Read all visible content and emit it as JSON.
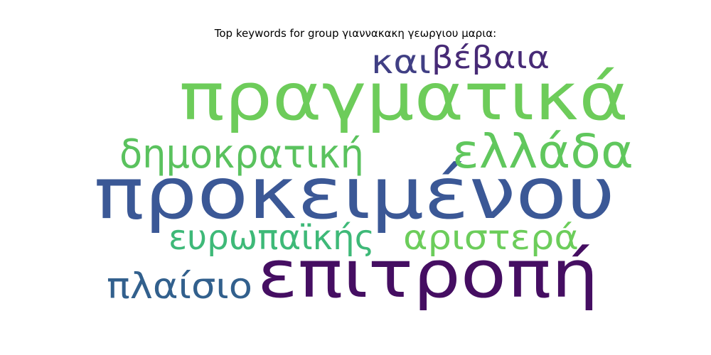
{
  "title": "Top keywords for group γιαννακακη γεωργιου μαρια:",
  "words": [
    {
      "text": "προκειμένου",
      "color": "#3b5896"
    },
    {
      "text": "πραγματικά",
      "color": "#6dcc5a"
    },
    {
      "text": "επιτροπή",
      "color": "#450e62"
    },
    {
      "text": "ελλάδα",
      "color": "#60c75d"
    },
    {
      "text": "δημοκρατική",
      "color": "#5ac25e"
    },
    {
      "text": "ευρωπαϊκής",
      "color": "#3eb978"
    },
    {
      "text": "αριστερά",
      "color": "#6ccd5b"
    },
    {
      "text": "πλαίσιο",
      "color": "#32608d"
    },
    {
      "text": "βέβαια",
      "color": "#472a76"
    },
    {
      "text": "και",
      "color": "#403f84"
    }
  ]
}
